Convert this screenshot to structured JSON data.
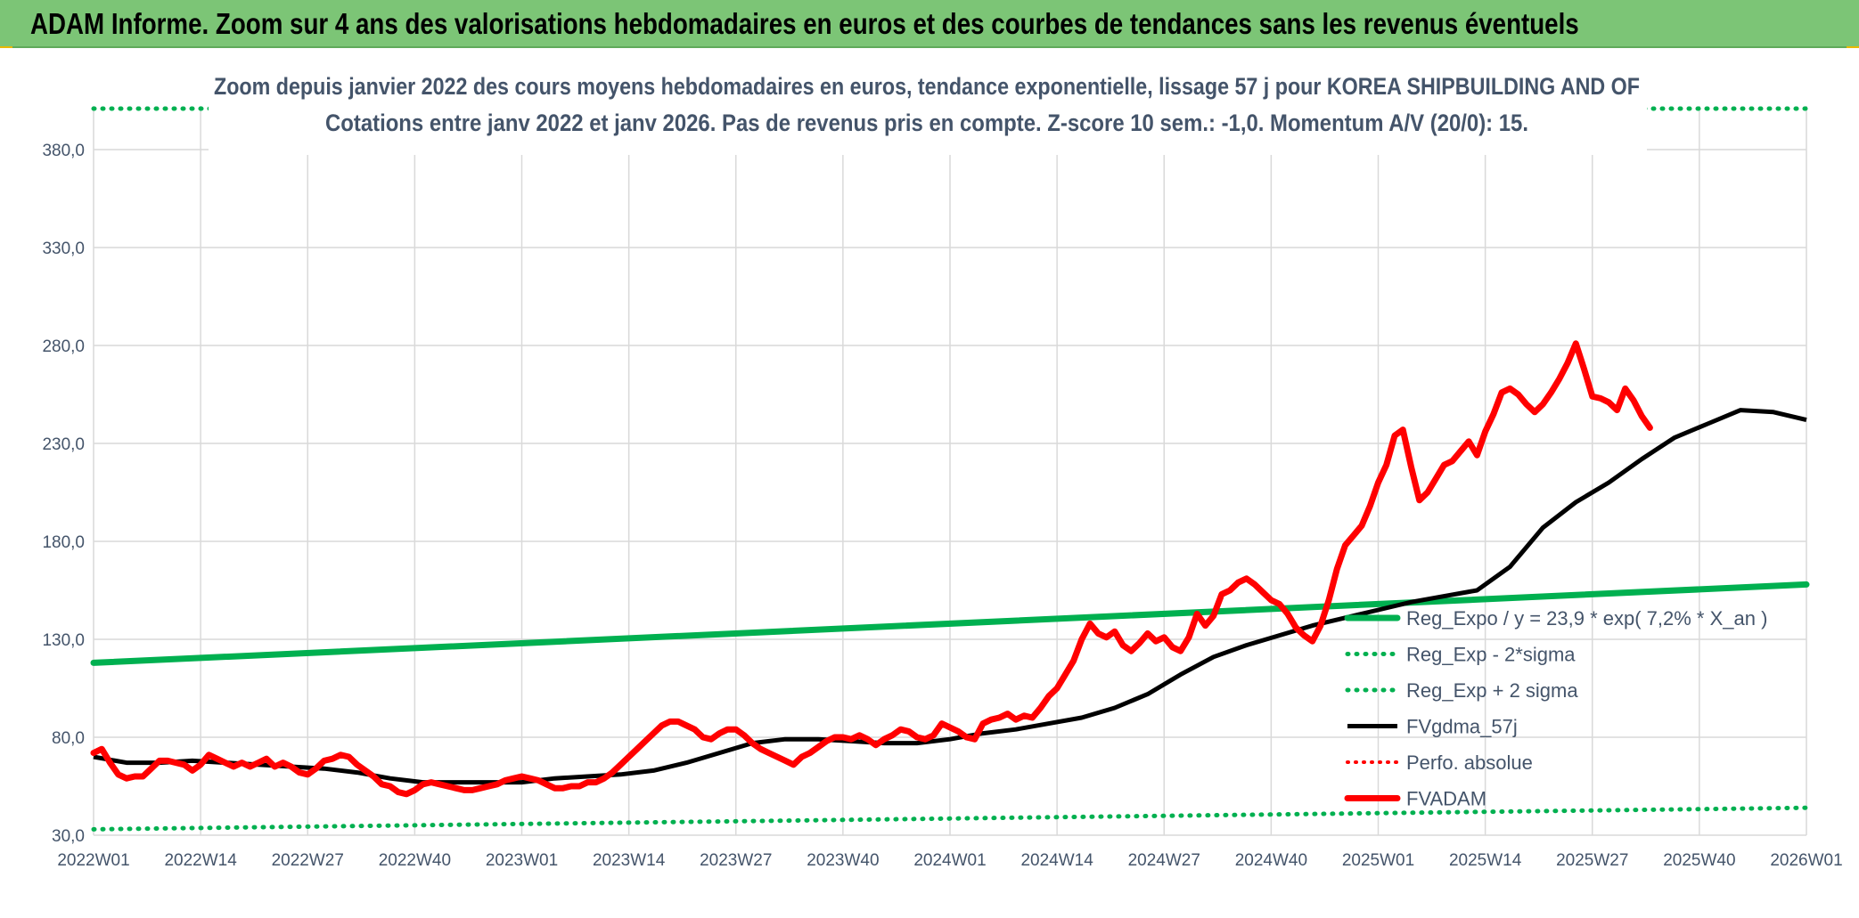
{
  "banner": {
    "title": "ADAM Informe. Zoom sur 4 ans des valorisations hebdomadaires en euros et des courbes de tendances sans les revenus éventuels"
  },
  "colors": {
    "banner": "#7cc576",
    "regression": "#00b050",
    "fvadam": "#ff0000",
    "fvgdma": "#000000",
    "text": "#44546a"
  },
  "chart_data": {
    "type": "line",
    "title": "Zoom depuis janvier 2022 des cours moyens hebdomadaires en euros, tendance exponentielle, lissage 57 j pour KOREA SHIPBUILDING AND OF",
    "subtitle": "Cotations entre janv 2022 et janv 2026. Pas de revenus pris en compte. Z-score 10 sem.: -1,0. Momentum A/V (20/0): 15.",
    "xlabel": "",
    "ylabel": "",
    "ylim": [
      30,
      380
    ],
    "yticks": [
      "30,0",
      "80,0",
      "130,0",
      "180,0",
      "230,0",
      "280,0",
      "330,0",
      "380,0"
    ],
    "x_range": [
      0,
      208
    ],
    "xticks": [
      {
        "label": "2022W01",
        "week": 0
      },
      {
        "label": "2022W14",
        "week": 13
      },
      {
        "label": "2022W27",
        "week": 26
      },
      {
        "label": "2022W40",
        "week": 39
      },
      {
        "label": "2023W01",
        "week": 52
      },
      {
        "label": "2023W14",
        "week": 65
      },
      {
        "label": "2023W27",
        "week": 78
      },
      {
        "label": "2023W40",
        "week": 91
      },
      {
        "label": "2024W01",
        "week": 104
      },
      {
        "label": "2024W14",
        "week": 117
      },
      {
        "label": "2024W27",
        "week": 130
      },
      {
        "label": "2024W40",
        "week": 143
      },
      {
        "label": "2025W01",
        "week": 156
      },
      {
        "label": "2025W14",
        "week": 169
      },
      {
        "label": "2025W27",
        "week": 182
      },
      {
        "label": "2025W40",
        "week": 195
      },
      {
        "label": "2026W01",
        "week": 208
      }
    ],
    "grid": true,
    "legend_position": "right",
    "series": [
      {
        "name": "Reg_Expo / y = 23,9 * exp( 7,2% *  X_an )",
        "style": "solid-green",
        "points": [
          [
            0,
            118
          ],
          [
            208,
            158
          ]
        ]
      },
      {
        "name": "Reg_Exp - 2*sigma",
        "style": "dotted-green",
        "points": [
          [
            0,
            33
          ],
          [
            208,
            44
          ]
        ]
      },
      {
        "name": "Reg_Exp + 2 sigma",
        "style": "dotted-green",
        "points": [
          [
            0,
            403
          ],
          [
            208,
            403
          ]
        ]
      },
      {
        "name": "FVgdma_57j",
        "style": "solid-black",
        "points": [
          [
            0,
            70
          ],
          [
            4,
            67
          ],
          [
            8,
            67
          ],
          [
            12,
            68
          ],
          [
            16,
            67
          ],
          [
            20,
            66
          ],
          [
            24,
            65
          ],
          [
            28,
            64
          ],
          [
            32,
            62
          ],
          [
            36,
            59
          ],
          [
            40,
            57
          ],
          [
            44,
            57
          ],
          [
            48,
            57
          ],
          [
            52,
            57
          ],
          [
            56,
            59
          ],
          [
            60,
            60
          ],
          [
            64,
            61
          ],
          [
            68,
            63
          ],
          [
            72,
            67
          ],
          [
            76,
            72
          ],
          [
            80,
            77
          ],
          [
            84,
            79
          ],
          [
            88,
            79
          ],
          [
            92,
            78
          ],
          [
            96,
            77
          ],
          [
            100,
            77
          ],
          [
            104,
            79
          ],
          [
            108,
            82
          ],
          [
            112,
            84
          ],
          [
            116,
            87
          ],
          [
            120,
            90
          ],
          [
            124,
            95
          ],
          [
            128,
            102
          ],
          [
            132,
            112
          ],
          [
            136,
            121
          ],
          [
            140,
            127
          ],
          [
            144,
            132
          ],
          [
            148,
            137
          ],
          [
            152,
            141
          ],
          [
            156,
            145
          ],
          [
            160,
            149
          ],
          [
            164,
            152
          ],
          [
            168,
            155
          ],
          [
            172,
            167
          ],
          [
            176,
            187
          ],
          [
            180,
            200
          ],
          [
            184,
            210
          ],
          [
            188,
            222
          ],
          [
            192,
            233
          ],
          [
            196,
            240
          ],
          [
            200,
            247
          ],
          [
            204,
            246
          ],
          [
            208,
            242
          ]
        ]
      },
      {
        "name": "Perfo. absolue",
        "style": "dotted-red",
        "points": []
      },
      {
        "name": "FVADAM",
        "style": "thick-red",
        "points": [
          [
            0,
            72
          ],
          [
            1,
            74
          ],
          [
            2,
            67
          ],
          [
            3,
            61
          ],
          [
            4,
            59
          ],
          [
            5,
            60
          ],
          [
            6,
            60
          ],
          [
            7,
            64
          ],
          [
            8,
            68
          ],
          [
            9,
            68
          ],
          [
            10,
            67
          ],
          [
            11,
            66
          ],
          [
            12,
            63
          ],
          [
            13,
            66
          ],
          [
            14,
            71
          ],
          [
            15,
            69
          ],
          [
            16,
            67
          ],
          [
            17,
            65
          ],
          [
            18,
            67
          ],
          [
            19,
            65
          ],
          [
            20,
            67
          ],
          [
            21,
            69
          ],
          [
            22,
            65
          ],
          [
            23,
            67
          ],
          [
            24,
            65
          ],
          [
            25,
            62
          ],
          [
            26,
            61
          ],
          [
            27,
            64
          ],
          [
            28,
            68
          ],
          [
            29,
            69
          ],
          [
            30,
            71
          ],
          [
            31,
            70
          ],
          [
            32,
            66
          ],
          [
            33,
            63
          ],
          [
            34,
            60
          ],
          [
            35,
            56
          ],
          [
            36,
            55
          ],
          [
            37,
            52
          ],
          [
            38,
            51
          ],
          [
            39,
            53
          ],
          [
            40,
            56
          ],
          [
            41,
            57
          ],
          [
            42,
            56
          ],
          [
            43,
            55
          ],
          [
            44,
            54
          ],
          [
            45,
            53
          ],
          [
            46,
            53
          ],
          [
            47,
            54
          ],
          [
            48,
            55
          ],
          [
            49,
            56
          ],
          [
            50,
            58
          ],
          [
            51,
            59
          ],
          [
            52,
            60
          ],
          [
            53,
            59
          ],
          [
            54,
            58
          ],
          [
            55,
            56
          ],
          [
            56,
            54
          ],
          [
            57,
            54
          ],
          [
            58,
            55
          ],
          [
            59,
            55
          ],
          [
            60,
            57
          ],
          [
            61,
            57
          ],
          [
            62,
            59
          ],
          [
            63,
            62
          ],
          [
            64,
            66
          ],
          [
            65,
            70
          ],
          [
            66,
            74
          ],
          [
            67,
            78
          ],
          [
            68,
            82
          ],
          [
            69,
            86
          ],
          [
            70,
            88
          ],
          [
            71,
            88
          ],
          [
            72,
            86
          ],
          [
            73,
            84
          ],
          [
            74,
            80
          ],
          [
            75,
            79
          ],
          [
            76,
            82
          ],
          [
            77,
            84
          ],
          [
            78,
            84
          ],
          [
            79,
            81
          ],
          [
            80,
            77
          ],
          [
            81,
            74
          ],
          [
            82,
            72
          ],
          [
            83,
            70
          ],
          [
            84,
            68
          ],
          [
            85,
            66
          ],
          [
            86,
            70
          ],
          [
            87,
            72
          ],
          [
            88,
            75
          ],
          [
            89,
            78
          ],
          [
            90,
            80
          ],
          [
            91,
            80
          ],
          [
            92,
            79
          ],
          [
            93,
            81
          ],
          [
            94,
            79
          ],
          [
            95,
            76
          ],
          [
            96,
            79
          ],
          [
            97,
            81
          ],
          [
            98,
            84
          ],
          [
            99,
            83
          ],
          [
            100,
            80
          ],
          [
            101,
            79
          ],
          [
            102,
            81
          ],
          [
            103,
            87
          ],
          [
            104,
            85
          ],
          [
            105,
            83
          ],
          [
            106,
            80
          ],
          [
            107,
            79
          ],
          [
            108,
            87
          ],
          [
            109,
            89
          ],
          [
            110,
            90
          ],
          [
            111,
            92
          ],
          [
            112,
            89
          ],
          [
            113,
            91
          ],
          [
            114,
            90
          ],
          [
            115,
            95
          ],
          [
            116,
            101
          ],
          [
            117,
            105
          ],
          [
            118,
            112
          ],
          [
            119,
            119
          ],
          [
            120,
            130
          ],
          [
            121,
            138
          ],
          [
            122,
            133
          ],
          [
            123,
            131
          ],
          [
            124,
            134
          ],
          [
            125,
            127
          ],
          [
            126,
            124
          ],
          [
            127,
            128
          ],
          [
            128,
            133
          ],
          [
            129,
            129
          ],
          [
            130,
            131
          ],
          [
            131,
            126
          ],
          [
            132,
            124
          ],
          [
            133,
            131
          ],
          [
            134,
            143
          ],
          [
            135,
            137
          ],
          [
            136,
            142
          ],
          [
            137,
            153
          ],
          [
            138,
            155
          ],
          [
            139,
            159
          ],
          [
            140,
            161
          ],
          [
            141,
            158
          ],
          [
            142,
            154
          ],
          [
            143,
            150
          ],
          [
            144,
            148
          ],
          [
            145,
            143
          ],
          [
            146,
            136
          ],
          [
            147,
            132
          ],
          [
            148,
            129
          ],
          [
            149,
            137
          ],
          [
            150,
            150
          ],
          [
            151,
            166
          ],
          [
            152,
            178
          ],
          [
            153,
            183
          ],
          [
            154,
            188
          ],
          [
            155,
            198
          ],
          [
            156,
            210
          ],
          [
            157,
            219
          ],
          [
            158,
            234
          ],
          [
            159,
            237
          ],
          [
            160,
            218
          ],
          [
            161,
            201
          ],
          [
            162,
            205
          ],
          [
            163,
            212
          ],
          [
            164,
            219
          ],
          [
            165,
            221
          ],
          [
            166,
            226
          ],
          [
            167,
            231
          ],
          [
            168,
            224
          ],
          [
            169,
            236
          ],
          [
            170,
            245
          ],
          [
            171,
            256
          ],
          [
            172,
            258
          ],
          [
            173,
            255
          ],
          [
            174,
            250
          ],
          [
            175,
            246
          ],
          [
            176,
            250
          ],
          [
            177,
            256
          ],
          [
            178,
            263
          ],
          [
            179,
            271
          ],
          [
            180,
            281
          ],
          [
            181,
            268
          ],
          [
            182,
            254
          ],
          [
            183,
            253
          ],
          [
            184,
            251
          ],
          [
            185,
            247
          ],
          [
            186,
            258
          ],
          [
            187,
            252
          ],
          [
            188,
            244
          ],
          [
            189,
            238
          ]
        ]
      }
    ]
  }
}
